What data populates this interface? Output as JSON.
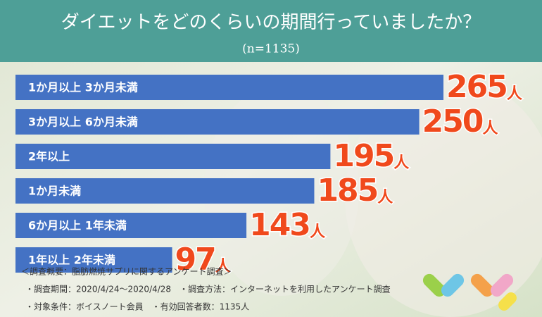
{
  "chart_data": {
    "type": "bar",
    "orientation": "horizontal",
    "title": "ダイエットをどのくらいの期間行っていましたか？",
    "subtitle": "(n=1135)",
    "categories": [
      "1か月以上 3か月未満",
      "3か月以上 6か月未満",
      "2年以上",
      "1か月未満",
      "6か月以上 1年未満",
      "1年以上 2年未満"
    ],
    "values": [
      265,
      250,
      195,
      185,
      143,
      97
    ],
    "unit": "人",
    "color": "#4472c4",
    "label_color": "#f0491c",
    "notes": [
      "＜調査概要：脂肪燃焼サプリに関するアンケート調査＞",
      "・調査期間：2020/4/24〜2020/4/28　・調査方法：インターネットを利用したアンケート調査",
      "・対象条件：ボイスノート会員　・有効回答者数：1135人"
    ]
  }
}
